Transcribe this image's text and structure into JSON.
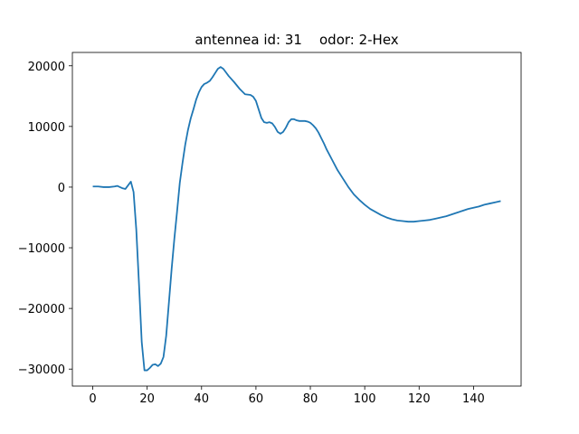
{
  "chart_data": {
    "type": "line",
    "title": "antennea id: 31    odor: 2-Hex",
    "xlabel": "",
    "ylabel": "",
    "xlim": [
      -7.5,
      157.5
    ],
    "ylim": [
      -32800,
      22200
    ],
    "xticks": [
      0,
      20,
      40,
      60,
      80,
      100,
      120,
      140
    ],
    "yticks": [
      -30000,
      -20000,
      -10000,
      0,
      10000,
      20000
    ],
    "grid": false,
    "line_color": "#1f77b4",
    "series": [
      {
        "x": [
          0,
          2,
          4,
          6,
          8,
          9,
          10,
          11,
          12,
          13,
          14,
          15,
          16,
          17,
          18,
          19,
          20,
          21,
          22,
          23,
          24,
          25,
          26,
          27,
          28,
          29,
          30,
          31,
          32,
          33,
          34,
          35,
          36,
          37,
          38,
          39,
          40,
          41,
          42,
          43,
          44,
          45,
          46,
          47,
          48,
          49,
          50,
          52,
          54,
          56,
          58,
          59,
          60,
          61,
          62,
          63,
          64,
          65,
          66,
          67,
          68,
          69,
          70,
          71,
          72,
          73,
          74,
          75,
          76,
          77,
          78,
          79,
          80,
          81,
          82,
          83,
          84,
          85,
          86,
          88,
          90,
          92,
          94,
          96,
          98,
          100,
          102,
          104,
          106,
          108,
          110,
          112,
          114,
          116,
          118,
          120,
          122,
          124,
          126,
          128,
          130,
          132,
          134,
          136,
          138,
          140,
          142,
          144,
          146,
          148,
          150
        ],
        "y": [
          100,
          100,
          0,
          0,
          100,
          200,
          0,
          -200,
          -300,
          300,
          900,
          -800,
          -7000,
          -16000,
          -25500,
          -30200,
          -30200,
          -29800,
          -29300,
          -29200,
          -29500,
          -29100,
          -28000,
          -24500,
          -19000,
          -13500,
          -8500,
          -4000,
          700,
          4000,
          7000,
          9400,
          11300,
          12800,
          14400,
          15600,
          16500,
          17000,
          17200,
          17500,
          18100,
          18800,
          19500,
          19800,
          19500,
          18900,
          18300,
          17300,
          16200,
          15300,
          15200,
          14900,
          14200,
          12800,
          11400,
          10700,
          10600,
          10700,
          10500,
          9900,
          9100,
          8800,
          9100,
          9800,
          10700,
          11200,
          11200,
          11000,
          10900,
          10900,
          10900,
          10800,
          10600,
          10200,
          9700,
          9000,
          8100,
          7200,
          6200,
          4500,
          2800,
          1400,
          0,
          -1200,
          -2100,
          -2900,
          -3600,
          -4100,
          -4600,
          -5000,
          -5300,
          -5500,
          -5600,
          -5700,
          -5700,
          -5600,
          -5500,
          -5400,
          -5200,
          -5000,
          -4800,
          -4500,
          -4200,
          -3900,
          -3600,
          -3400,
          -3200,
          -2900,
          -2700,
          -2500,
          -2300
        ]
      }
    ]
  }
}
